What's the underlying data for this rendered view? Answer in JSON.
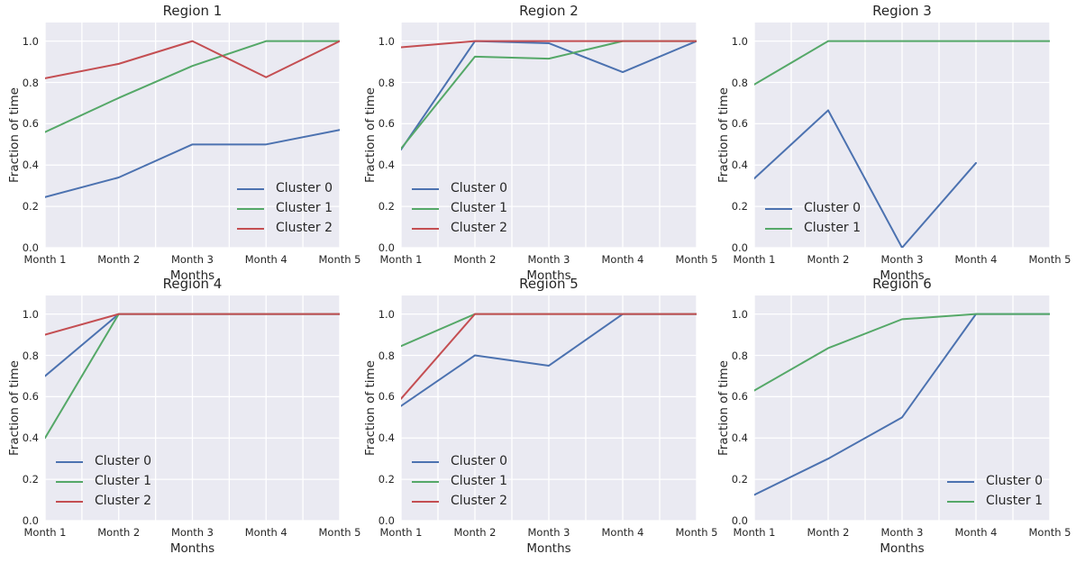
{
  "figure": {
    "background": "#ffffff"
  },
  "colors": {
    "axes_background": "#eaeaf2",
    "grid": "#ffffff",
    "text": "#262626",
    "cluster0": "#4c72b0",
    "cluster1": "#55a868",
    "cluster2": "#c44e52"
  },
  "chart_data": [
    {
      "type": "line",
      "title": "Region 1",
      "xlabel": "Months",
      "ylabel": "Fraction of time",
      "categories": [
        "Month 1",
        "Month 2",
        "Month 3",
        "Month 4",
        "Month 5"
      ],
      "ytick_labels": [
        "0.0",
        "0.2",
        "0.4",
        "0.6",
        "0.8",
        "1.0"
      ],
      "ylim": [
        0,
        1.09
      ],
      "grid": true,
      "legend_loc": "lower right",
      "series": [
        {
          "name": "Cluster 0",
          "color": "#4c72b0",
          "values": [
            0.245,
            0.34,
            0.5,
            0.5,
            0.57
          ]
        },
        {
          "name": "Cluster 1",
          "color": "#55a868",
          "values": [
            0.56,
            0.725,
            0.88,
            1.0,
            1.0
          ]
        },
        {
          "name": "Cluster 2",
          "color": "#c44e52",
          "values": [
            0.82,
            0.89,
            1.0,
            0.825,
            1.0
          ]
        }
      ]
    },
    {
      "type": "line",
      "title": "Region 2",
      "xlabel": "Months",
      "ylabel": "Fraction of time",
      "categories": [
        "Month 1",
        "Month 2",
        "Month 3",
        "Month 4",
        "Month 5"
      ],
      "ytick_labels": [
        "0.0",
        "0.2",
        "0.4",
        "0.6",
        "0.8",
        "1.0"
      ],
      "ylim": [
        0,
        1.09
      ],
      "grid": true,
      "legend_loc": "lower left",
      "series": [
        {
          "name": "Cluster 0",
          "color": "#4c72b0",
          "values": [
            0.475,
            1.0,
            0.99,
            0.85,
            1.0
          ]
        },
        {
          "name": "Cluster 1",
          "color": "#55a868",
          "values": [
            0.48,
            0.925,
            0.915,
            1.0,
            1.0
          ]
        },
        {
          "name": "Cluster 2",
          "color": "#c44e52",
          "values": [
            0.97,
            1.0,
            1.0,
            1.0,
            1.0
          ]
        }
      ]
    },
    {
      "type": "line",
      "title": "Region 3",
      "xlabel": "Months",
      "ylabel": "Fraction of time",
      "categories": [
        "Month 1",
        "Month 2",
        "Month 3",
        "Month 4",
        "Month 5"
      ],
      "ytick_labels": [
        "0.0",
        "0.2",
        "0.4",
        "0.6",
        "0.8",
        "1.0"
      ],
      "ylim": [
        0,
        1.09
      ],
      "grid": true,
      "legend_loc": "lower left",
      "series": [
        {
          "name": "Cluster 0",
          "color": "#4c72b0",
          "values": [
            0.335,
            0.665,
            0.0,
            0.41,
            null
          ]
        },
        {
          "name": "Cluster 1",
          "color": "#55a868",
          "values": [
            0.79,
            1.0,
            1.0,
            1.0,
            1.0
          ]
        }
      ]
    },
    {
      "type": "line",
      "title": "Region 4",
      "xlabel": "Months",
      "ylabel": "Fraction of time",
      "categories": [
        "Month 1",
        "Month 2",
        "Month 3",
        "Month 4",
        "Month 5"
      ],
      "ytick_labels": [
        "0.0",
        "0.2",
        "0.4",
        "0.6",
        "0.8",
        "1.0"
      ],
      "ylim": [
        0,
        1.09
      ],
      "grid": true,
      "legend_loc": "lower left",
      "series": [
        {
          "name": "Cluster 0",
          "color": "#4c72b0",
          "values": [
            0.7,
            1.0,
            1.0,
            1.0,
            1.0
          ]
        },
        {
          "name": "Cluster 1",
          "color": "#55a868",
          "values": [
            0.4,
            1.0,
            1.0,
            1.0,
            1.0
          ]
        },
        {
          "name": "Cluster 2",
          "color": "#c44e52",
          "values": [
            0.9,
            1.0,
            1.0,
            1.0,
            1.0
          ]
        }
      ]
    },
    {
      "type": "line",
      "title": "Region 5",
      "xlabel": "Months",
      "ylabel": "Fraction of time",
      "categories": [
        "Month 1",
        "Month 2",
        "Month 3",
        "Month 4",
        "Month 5"
      ],
      "ytick_labels": [
        "0.0",
        "0.2",
        "0.4",
        "0.6",
        "0.8",
        "1.0"
      ],
      "ylim": [
        0,
        1.09
      ],
      "grid": true,
      "legend_loc": "lower left",
      "series": [
        {
          "name": "Cluster 0",
          "color": "#4c72b0",
          "values": [
            0.555,
            0.8,
            0.75,
            1.0,
            1.0
          ]
        },
        {
          "name": "Cluster 1",
          "color": "#55a868",
          "values": [
            0.845,
            1.0,
            1.0,
            1.0,
            1.0
          ]
        },
        {
          "name": "Cluster 2",
          "color": "#c44e52",
          "values": [
            0.59,
            1.0,
            1.0,
            1.0,
            1.0
          ]
        }
      ]
    },
    {
      "type": "line",
      "title": "Region 6",
      "xlabel": "Months",
      "ylabel": "Fraction of time",
      "categories": [
        "Month 1",
        "Month 2",
        "Month 3",
        "Month 4",
        "Month 5"
      ],
      "ytick_labels": [
        "0.0",
        "0.2",
        "0.4",
        "0.6",
        "0.8",
        "1.0"
      ],
      "ylim": [
        0,
        1.09
      ],
      "grid": true,
      "legend_loc": "lower right",
      "series": [
        {
          "name": "Cluster 0",
          "color": "#4c72b0",
          "values": [
            0.125,
            0.3,
            0.5,
            1.0,
            1.0
          ]
        },
        {
          "name": "Cluster 1",
          "color": "#55a868",
          "values": [
            0.63,
            0.835,
            0.975,
            1.0,
            1.0
          ]
        }
      ]
    }
  ]
}
